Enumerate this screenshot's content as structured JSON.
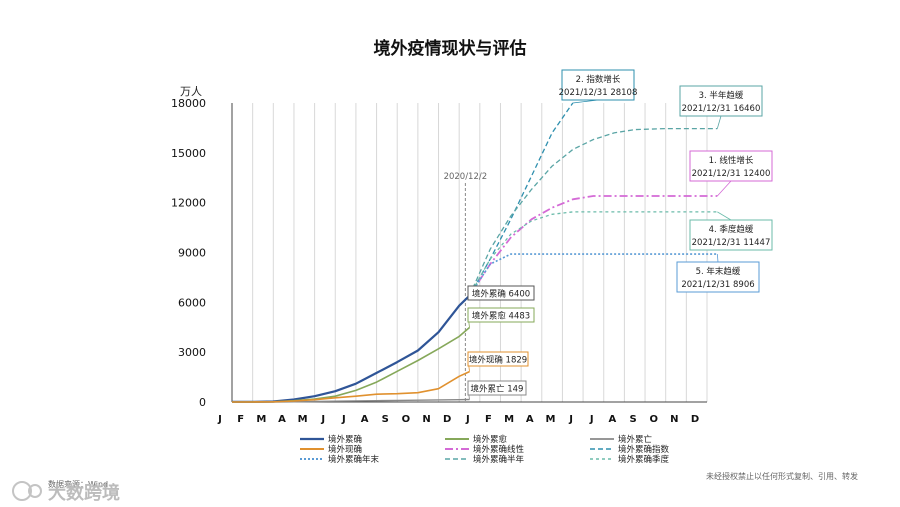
{
  "chart_data": {
    "type": "line",
    "title": "境外疫情现状与评估",
    "ylabel": "万人",
    "ylim": [
      0,
      18000
    ],
    "yticks": [
      0,
      3000,
      6000,
      9000,
      12000,
      15000,
      18000
    ],
    "categories": [
      "J",
      "F",
      "M",
      "A",
      "M",
      "J",
      "J",
      "A",
      "S",
      "O",
      "N",
      "D",
      "J",
      "F",
      "M",
      "A",
      "M",
      "J",
      "J",
      "A",
      "S",
      "O",
      "N",
      "D"
    ],
    "marker": {
      "label": "2020/12/2",
      "x": 11.3
    },
    "series": [
      {
        "name": "境外累确",
        "color": "#2f5597",
        "style": "solid",
        "width": 2.2,
        "points": [
          [
            0,
            5
          ],
          [
            1,
            8
          ],
          [
            2,
            30
          ],
          [
            3,
            150
          ],
          [
            4,
            350
          ],
          [
            5,
            650
          ],
          [
            6,
            1100
          ],
          [
            7,
            1750
          ],
          [
            8,
            2400
          ],
          [
            9,
            3100
          ],
          [
            10,
            4200
          ],
          [
            11,
            5800
          ],
          [
            11.5,
            6400
          ]
        ]
      },
      {
        "name": "境外累愈",
        "color": "#86a85a",
        "style": "solid",
        "width": 1.6,
        "points": [
          [
            0,
            3
          ],
          [
            1,
            5
          ],
          [
            2,
            15
          ],
          [
            3,
            80
          ],
          [
            4,
            180
          ],
          [
            5,
            350
          ],
          [
            6,
            700
          ],
          [
            7,
            1200
          ],
          [
            8,
            1850
          ],
          [
            9,
            2500
          ],
          [
            10,
            3200
          ],
          [
            11,
            3950
          ],
          [
            11.5,
            4483
          ]
        ]
      },
      {
        "name": "境外累亡",
        "color": "#888888",
        "style": "solid",
        "width": 1.4,
        "points": [
          [
            0,
            0
          ],
          [
            1,
            0
          ],
          [
            2,
            2
          ],
          [
            3,
            12
          ],
          [
            4,
            30
          ],
          [
            5,
            50
          ],
          [
            6,
            65
          ],
          [
            7,
            80
          ],
          [
            8,
            95
          ],
          [
            9,
            110
          ],
          [
            10,
            125
          ],
          [
            11,
            140
          ],
          [
            11.5,
            149
          ]
        ]
      },
      {
        "name": "境外现确",
        "color": "#e0912f",
        "style": "solid",
        "width": 1.6,
        "points": [
          [
            0,
            2
          ],
          [
            1,
            3
          ],
          [
            2,
            13
          ],
          [
            3,
            60
          ],
          [
            4,
            140
          ],
          [
            5,
            250
          ],
          [
            6,
            350
          ],
          [
            7,
            470
          ],
          [
            8,
            500
          ],
          [
            9,
            560
          ],
          [
            10,
            800
          ],
          [
            11,
            1550
          ],
          [
            11.5,
            1829
          ]
        ]
      },
      {
        "name": "境外累确线性",
        "color": "#d46ad6",
        "style": "dashdot",
        "width": 1.8,
        "points": [
          [
            11.5,
            6400
          ],
          [
            12.5,
            8300
          ],
          [
            13.5,
            9900
          ],
          [
            14.5,
            11000
          ],
          [
            15.5,
            11700
          ],
          [
            16.5,
            12200
          ],
          [
            17.5,
            12400
          ],
          [
            20,
            12400
          ],
          [
            23.5,
            12400
          ]
        ]
      },
      {
        "name": "境外累确指数",
        "color": "#2e8fae",
        "style": "dash",
        "width": 1.3,
        "points": [
          [
            11.5,
            6400
          ],
          [
            12.5,
            8600
          ],
          [
            13.5,
            11000
          ],
          [
            14.5,
            13600
          ],
          [
            15.5,
            16200
          ],
          [
            16.5,
            18000
          ]
        ]
      },
      {
        "name": "境外累确年末",
        "color": "#5a9bd5",
        "style": "dot",
        "width": 1.6,
        "points": [
          [
            11.5,
            6400
          ],
          [
            12.5,
            8300
          ],
          [
            13.5,
            8906
          ],
          [
            17,
            8906
          ],
          [
            23.5,
            8906
          ]
        ]
      },
      {
        "name": "境外累确半年",
        "color": "#5aa5a5",
        "style": "dash",
        "width": 1.3,
        "points": [
          [
            11.5,
            6400
          ],
          [
            12.5,
            9200
          ],
          [
            13.5,
            11200
          ],
          [
            14.5,
            12800
          ],
          [
            15.5,
            14200
          ],
          [
            16.5,
            15200
          ],
          [
            17.5,
            15800
          ],
          [
            18.5,
            16200
          ],
          [
            19.5,
            16400
          ],
          [
            21,
            16460
          ],
          [
            23.5,
            16460
          ]
        ]
      },
      {
        "name": "境外累确季度",
        "color": "#6bbbaa",
        "style": "dash2",
        "width": 1.3,
        "points": [
          [
            11.5,
            6400
          ],
          [
            12.5,
            8600
          ],
          [
            13.5,
            10100
          ],
          [
            14.5,
            10900
          ],
          [
            15.5,
            11300
          ],
          [
            16.5,
            11447
          ],
          [
            23.5,
            11447
          ]
        ]
      }
    ],
    "callouts": [
      {
        "line1": "境外累确 6400",
        "line2": "",
        "color": "#555555",
        "x": 11.5,
        "y": 6400
      },
      {
        "line1": "境外累愈 4483",
        "line2": "",
        "color": "#86a85a",
        "x": 11.5,
        "y": 4483
      },
      {
        "line1": "境外现确 1829",
        "line2": "",
        "color": "#e0912f",
        "x": 11.5,
        "y": 1829
      },
      {
        "line1": "境外累亡 149",
        "line2": "",
        "color": "#888888",
        "x": 11.5,
        "y": 149
      },
      {
        "line1": "2. 指数增长",
        "line2": "2021/12/31 28108",
        "color": "#2e8fae",
        "x": 16.5,
        "y": 18000
      },
      {
        "line1": "3. 半年趋缓",
        "line2": "2021/12/31 16460",
        "color": "#5aa5a5",
        "x": 23.5,
        "y": 16460
      },
      {
        "line1": "1. 线性增长",
        "line2": "2021/12/31 12400",
        "color": "#d46ad6",
        "x": 23.5,
        "y": 12400
      },
      {
        "line1": "4. 季度趋缓",
        "line2": "2021/12/31 11447",
        "color": "#6bbbaa",
        "x": 23.5,
        "y": 11447
      },
      {
        "line1": "5. 年末趋缓",
        "line2": "2021/12/31 8906",
        "color": "#5a9bd5",
        "x": 23.5,
        "y": 8906
      }
    ],
    "legend_position": "bottom"
  },
  "footer": {
    "source": "数据来源：Wind",
    "note": "未经授权禁止以任何形式复制、引用、转发",
    "watermark": "大数跨境"
  }
}
